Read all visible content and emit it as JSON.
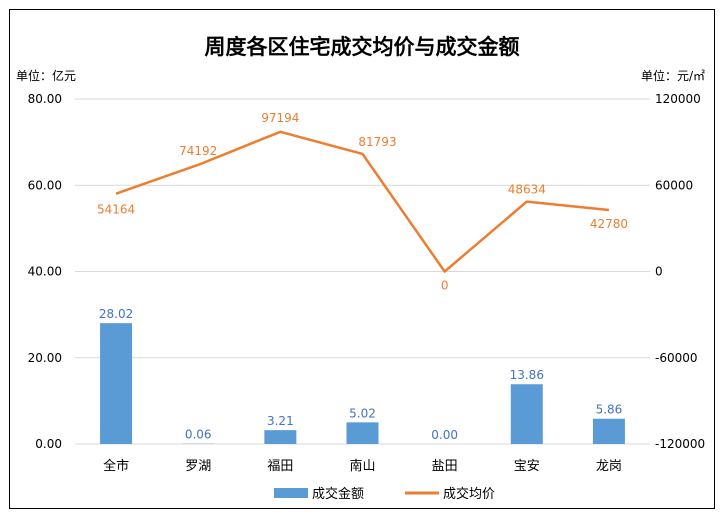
{
  "chart_data": {
    "type": "bar+line",
    "title": "周度各区住宅成交均价与成交金额",
    "left_unit": "单位：亿元",
    "right_unit": "单位：元/㎡",
    "categories": [
      "全市",
      "罗湖",
      "福田",
      "南山",
      "盐田",
      "宝安",
      "龙岗"
    ],
    "left_axis": {
      "ylim": [
        0,
        80
      ],
      "ticks": [
        0,
        20,
        40,
        60,
        80
      ],
      "tick_labels": [
        "0.00",
        "20.00",
        "40.00",
        "60.00",
        "80.00"
      ]
    },
    "right_axis": {
      "ylim": [
        -120000,
        120000
      ],
      "ticks": [
        -120000,
        -60000,
        0,
        60000,
        120000
      ],
      "tick_labels": [
        "-120000",
        "-60000",
        "0",
        "60000",
        "120000"
      ]
    },
    "series": [
      {
        "name": "成交金额",
        "type": "bar",
        "axis": "left",
        "color": "#5b9bd5",
        "label_color": "#4472c4",
        "values": [
          28.02,
          0.06,
          3.21,
          5.02,
          0.0,
          13.86,
          5.86
        ],
        "labels": [
          "28.02",
          "0.06",
          "3.21",
          "5.02",
          "0.00",
          "13.86",
          "5.86"
        ]
      },
      {
        "name": "成交均价",
        "type": "line",
        "axis": "right",
        "color": "#ed7d31",
        "label_color": "#ed7d31",
        "values": [
          54164,
          74192,
          97194,
          81793,
          0,
          48634,
          42780
        ],
        "labels": [
          "54164",
          "74192",
          "97194",
          "81793",
          "0",
          "48634",
          "42780"
        ]
      }
    ],
    "grid": true,
    "legend": "bottom",
    "colors": {
      "gridline": "#d9d9d9",
      "axis_text": "#000000",
      "border": "#000000"
    }
  }
}
